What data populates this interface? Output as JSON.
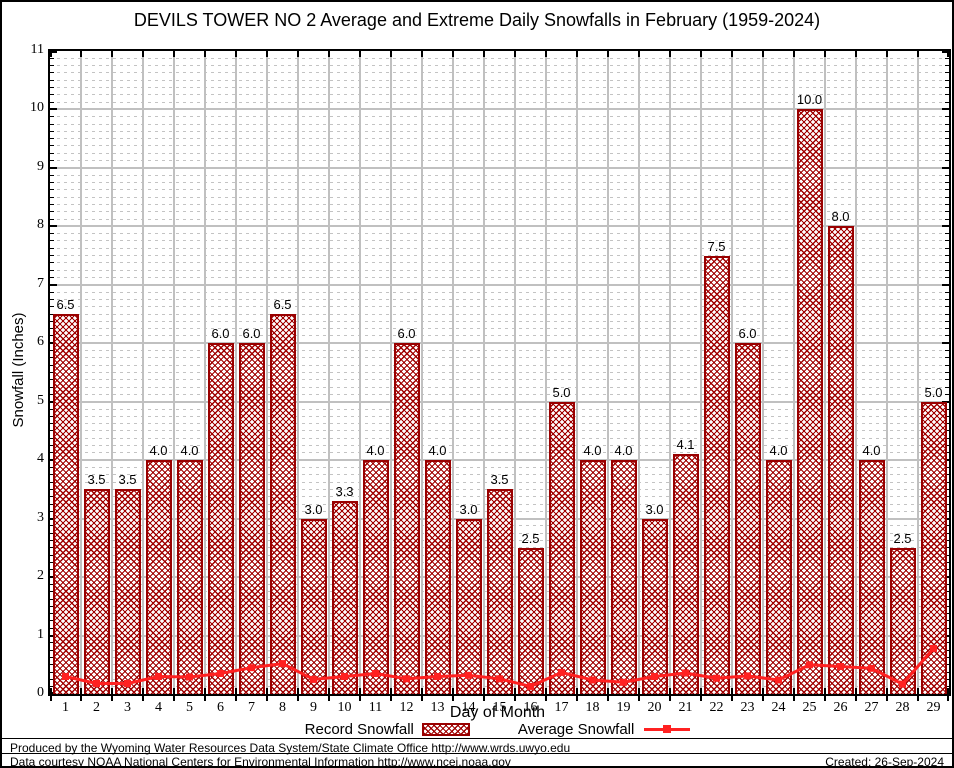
{
  "title": "DEVILS TOWER NO 2 Average and Extreme Daily Snowfalls in February (1959-2024)",
  "chart_data": {
    "type": "bar",
    "title": "DEVILS TOWER NO 2 Average and Extreme Daily Snowfalls in February (1959-2024)",
    "xlabel": "Day of Month",
    "ylabel": "Snowfall (Inches)",
    "ylim": [
      0,
      11
    ],
    "yticks": [
      0,
      1,
      2,
      3,
      4,
      5,
      6,
      7,
      8,
      9,
      10,
      11
    ],
    "categories": [
      1,
      2,
      3,
      4,
      5,
      6,
      7,
      8,
      9,
      10,
      11,
      12,
      13,
      14,
      15,
      16,
      17,
      18,
      19,
      20,
      21,
      22,
      23,
      24,
      25,
      26,
      27,
      28,
      29
    ],
    "grid": true,
    "legend_position": "bottom",
    "series": [
      {
        "name": "Record Snowfall",
        "type": "bar",
        "values": [
          6.5,
          3.5,
          3.5,
          4.0,
          4.0,
          6.0,
          6.0,
          6.5,
          3.0,
          3.3,
          4.0,
          6.0,
          4.0,
          3.0,
          3.5,
          2.5,
          5.0,
          4.0,
          4.0,
          3.0,
          4.1,
          7.5,
          6.0,
          4.0,
          10.0,
          8.0,
          4.0,
          2.5,
          5.0
        ],
        "labels": [
          "6.5",
          "3.5",
          "3.5",
          "4.0",
          "4.0",
          "6.0",
          "6.0",
          "6.5",
          "3.0",
          "3.3",
          "4.0",
          "6.0",
          "4.0",
          "3.0",
          "3.5",
          "2.5",
          "5.0",
          "4.0",
          "4.0",
          "3.0",
          "4.1",
          "7.5",
          "6.0",
          "4.0",
          "10.0",
          "8.0",
          "4.0",
          "2.5",
          "5.0"
        ]
      },
      {
        "name": "Average Snowfall",
        "type": "line",
        "values": [
          0.3,
          0.18,
          0.18,
          0.3,
          0.29,
          0.35,
          0.45,
          0.52,
          0.25,
          0.3,
          0.35,
          0.26,
          0.3,
          0.32,
          0.26,
          0.13,
          0.37,
          0.24,
          0.2,
          0.3,
          0.36,
          0.27,
          0.31,
          0.24,
          0.5,
          0.47,
          0.44,
          0.17,
          0.78
        ]
      }
    ],
    "colors": {
      "bar_fill_pattern": "#a00000",
      "bar_border": "#990000",
      "line": "#ff2121",
      "grid_major": "#c0c0c0",
      "grid_minor": "#c3c3c3"
    }
  },
  "legend": {
    "record_label": "Record Snowfall",
    "average_label": "Average Snowfall"
  },
  "footer": {
    "line1": "Produced by the Wyoming Water Resources Data System/State Climate Office http://www.wrds.uwyo.edu",
    "line2": "Data courtesy NOAA National Centers for Environmental Information http://www.ncei.noaa.gov",
    "created": "Created: 26-Sep-2024"
  }
}
